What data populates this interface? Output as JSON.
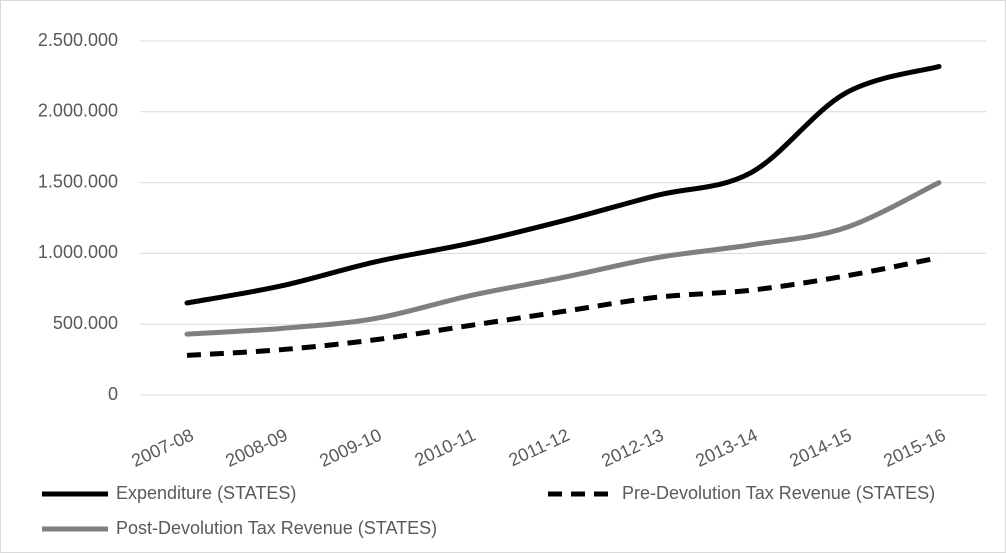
{
  "chart_data": {
    "type": "line",
    "categories": [
      "2007-08",
      "2008-09",
      "2009-10",
      "2010-11",
      "2011-12",
      "2012-13",
      "2013-14",
      "2014-15",
      "2015-16"
    ],
    "series": [
      {
        "name": "Expenditure (STATES)",
        "color": "#000000",
        "dashed": false,
        "values": [
          650000,
          770000,
          940000,
          1070000,
          1230000,
          1410000,
          1570000,
          2130000,
          2320000
        ]
      },
      {
        "name": "Pre-Devolution Tax Revenue (STATES)",
        "color": "#000000",
        "dashed": true,
        "values": [
          280000,
          320000,
          390000,
          490000,
          590000,
          690000,
          740000,
          840000,
          970000
        ]
      },
      {
        "name": "Post-Devolution Tax Revenue (STATES)",
        "color": "#7f7f7f",
        "dashed": false,
        "values": [
          430000,
          470000,
          540000,
          700000,
          830000,
          970000,
          1060000,
          1180000,
          1500000
        ]
      }
    ],
    "ylim": [
      0,
      2500000
    ],
    "yticks": [
      0,
      {
        "value": 500000,
        "label": "500.000"
      },
      {
        "value": 1000000,
        "label": "1.000.000"
      },
      {
        "value": 1500000,
        "label": "1.500.000"
      },
      {
        "value": 2000000,
        "label": "2.000.000"
      },
      {
        "value": 2500000,
        "label": "2.500.000"
      }
    ],
    "grid": true,
    "legend": "bottom",
    "smooth": true
  }
}
